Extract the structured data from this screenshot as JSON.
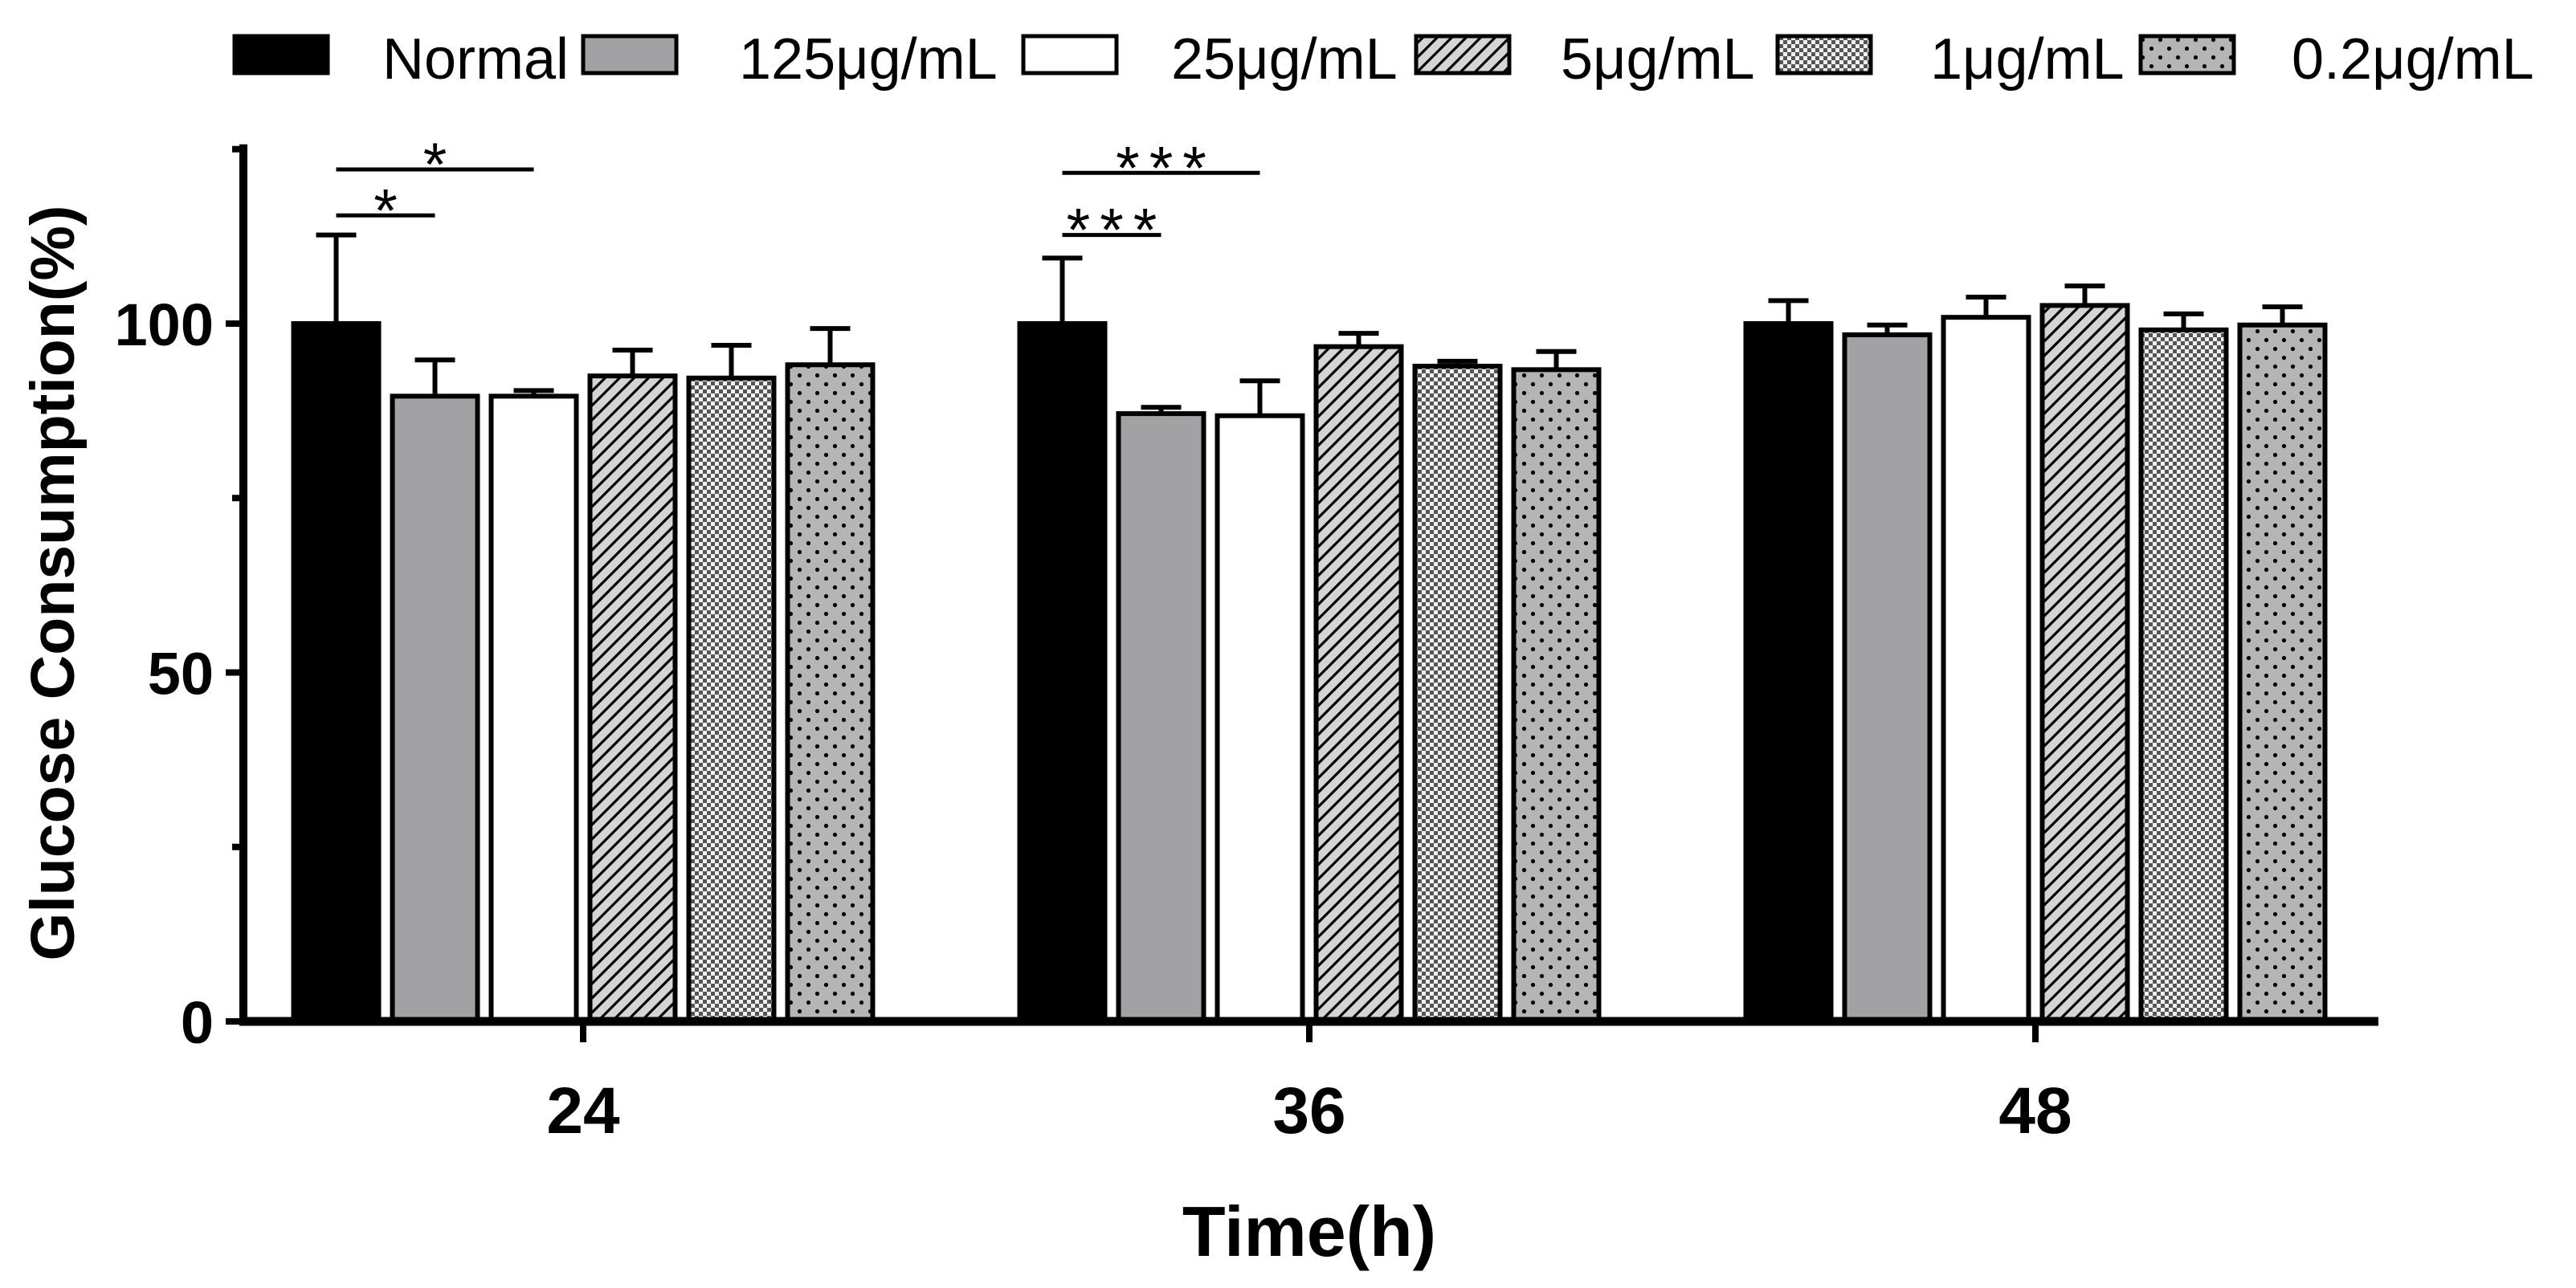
{
  "chart_data": {
    "type": "bar",
    "xlabel": "Time(h)",
    "ylabel": "Glucose Consumption(%)",
    "categories": [
      "24",
      "36",
      "48"
    ],
    "ylim": [
      0,
      125
    ],
    "yticks": [
      0,
      50,
      100
    ],
    "grid": false,
    "legend": "top",
    "series": [
      {
        "name": "Normal",
        "color": "#000000",
        "pattern": "solid",
        "values": [
          100.0,
          100.0,
          100.0
        ],
        "errors": [
          12.7,
          9.4,
          3.3
        ]
      },
      {
        "name": "125μg/mL",
        "color": "#a2a2a5",
        "pattern": "solid",
        "values": [
          89.6,
          87.1,
          98.4
        ],
        "errors": [
          5.2,
          0.9,
          1.4
        ]
      },
      {
        "name": "25μg/mL",
        "color": "#ffffff",
        "pattern": "solid",
        "values": [
          89.6,
          86.8,
          100.9
        ],
        "errors": [
          0.8,
          5.0,
          2.9
        ]
      },
      {
        "name": "5μg/mL",
        "color": "#d4d4d4",
        "pattern": "diagonal-hatch",
        "values": [
          92.5,
          96.7,
          102.6
        ],
        "errors": [
          3.7,
          1.9,
          2.8
        ]
      },
      {
        "name": "1μg/mL",
        "color": "#555555",
        "pattern": "checker",
        "values": [
          92.2,
          93.9,
          99.1
        ],
        "errors": [
          4.7,
          0.7,
          2.3
        ]
      },
      {
        "name": "0.2μg/mL",
        "color": "#b5b5b5",
        "pattern": "dots",
        "values": [
          94.1,
          93.4,
          99.8
        ],
        "errors": [
          5.2,
          2.6,
          2.6
        ]
      }
    ],
    "annotations": [
      {
        "category": "24",
        "from": "Normal",
        "to": "125μg/mL",
        "label": "*"
      },
      {
        "category": "24",
        "from": "Normal",
        "to": "25μg/mL",
        "label": "*"
      },
      {
        "category": "36",
        "from": "Normal",
        "to": "125μg/mL",
        "label": "***"
      },
      {
        "category": "36",
        "from": "Normal",
        "to": "25μg/mL",
        "label": "***"
      }
    ]
  }
}
